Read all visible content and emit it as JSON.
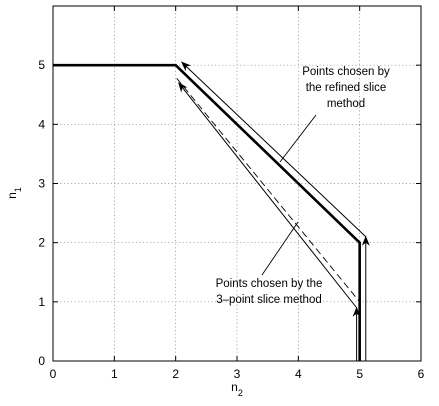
{
  "chart_data": {
    "type": "line",
    "xlabel": "n",
    "xlabel_sub": "2",
    "ylabel": "n",
    "ylabel_sub": "1",
    "xlim": [
      0,
      6
    ],
    "ylim": [
      0,
      6
    ],
    "xticks": [
      "0",
      "1",
      "2",
      "3",
      "4",
      "5",
      "6"
    ],
    "yticks": [
      "0",
      "1",
      "2",
      "3",
      "4",
      "5"
    ],
    "grid": true,
    "series": [
      {
        "style": "thick",
        "x": [
          0,
          2,
          5,
          5
        ],
        "y": [
          5,
          5,
          2,
          0
        ]
      },
      {
        "style": "thin",
        "x": [
          5.1,
          5.1,
          5.1,
          2.1
        ],
        "y": [
          0,
          2.1,
          2.1,
          5.05
        ]
      },
      {
        "style": "dashed",
        "x": [
          5,
          5,
          2
        ],
        "y": [
          0,
          1,
          4.8
        ]
      },
      {
        "style": "thin",
        "x": [
          4.95,
          4.95,
          4.95,
          2.05
        ],
        "y": [
          0,
          0.9,
          0.9,
          4.7
        ]
      }
    ],
    "annotations": [
      {
        "lines": [
          "Points chosen by",
          "the refined slice",
          "method"
        ]
      },
      {
        "lines": [
          "Points chosen by the",
          "3–point slice method"
        ]
      }
    ]
  }
}
